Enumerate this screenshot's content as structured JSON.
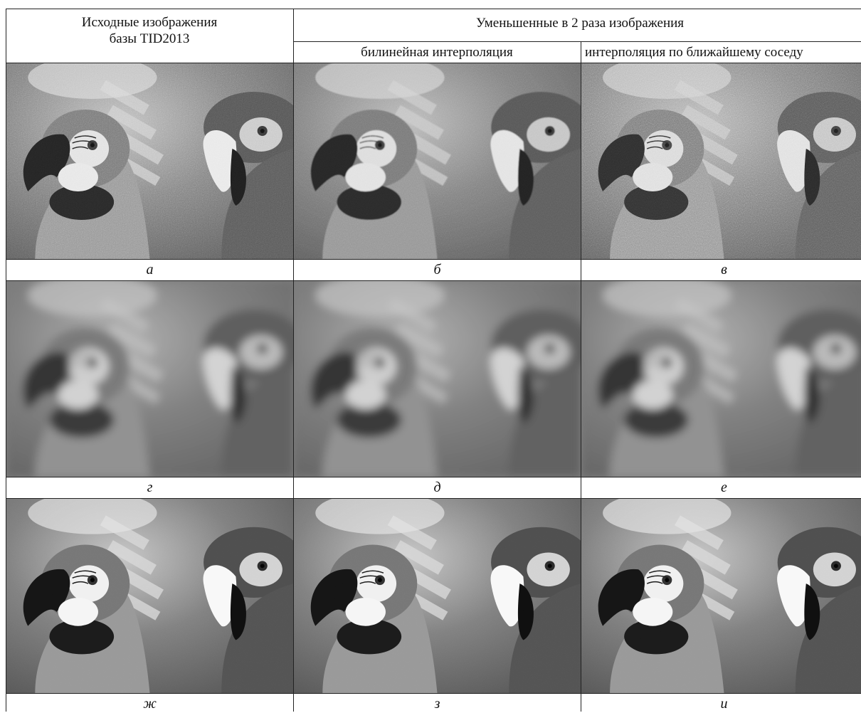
{
  "header": {
    "source_col": "Исходные изображения базы TID2013",
    "reduced_group": "Уменьшенные в 2 раза изображения",
    "bilinear": "билинейная интерполяция",
    "nearest": "интерполяция по ближайшему соседу"
  },
  "panels": [
    {
      "label": "а",
      "style": "noisy"
    },
    {
      "label": "б",
      "style": "noisy-soft"
    },
    {
      "label": "в",
      "style": "noisy-hard"
    },
    {
      "label": "г",
      "style": "blur"
    },
    {
      "label": "д",
      "style": "blur"
    },
    {
      "label": "е",
      "style": "blur"
    },
    {
      "label": "ж",
      "style": "sharp"
    },
    {
      "label": "з",
      "style": "sharp"
    },
    {
      "label": "и",
      "style": "sharp"
    }
  ]
}
